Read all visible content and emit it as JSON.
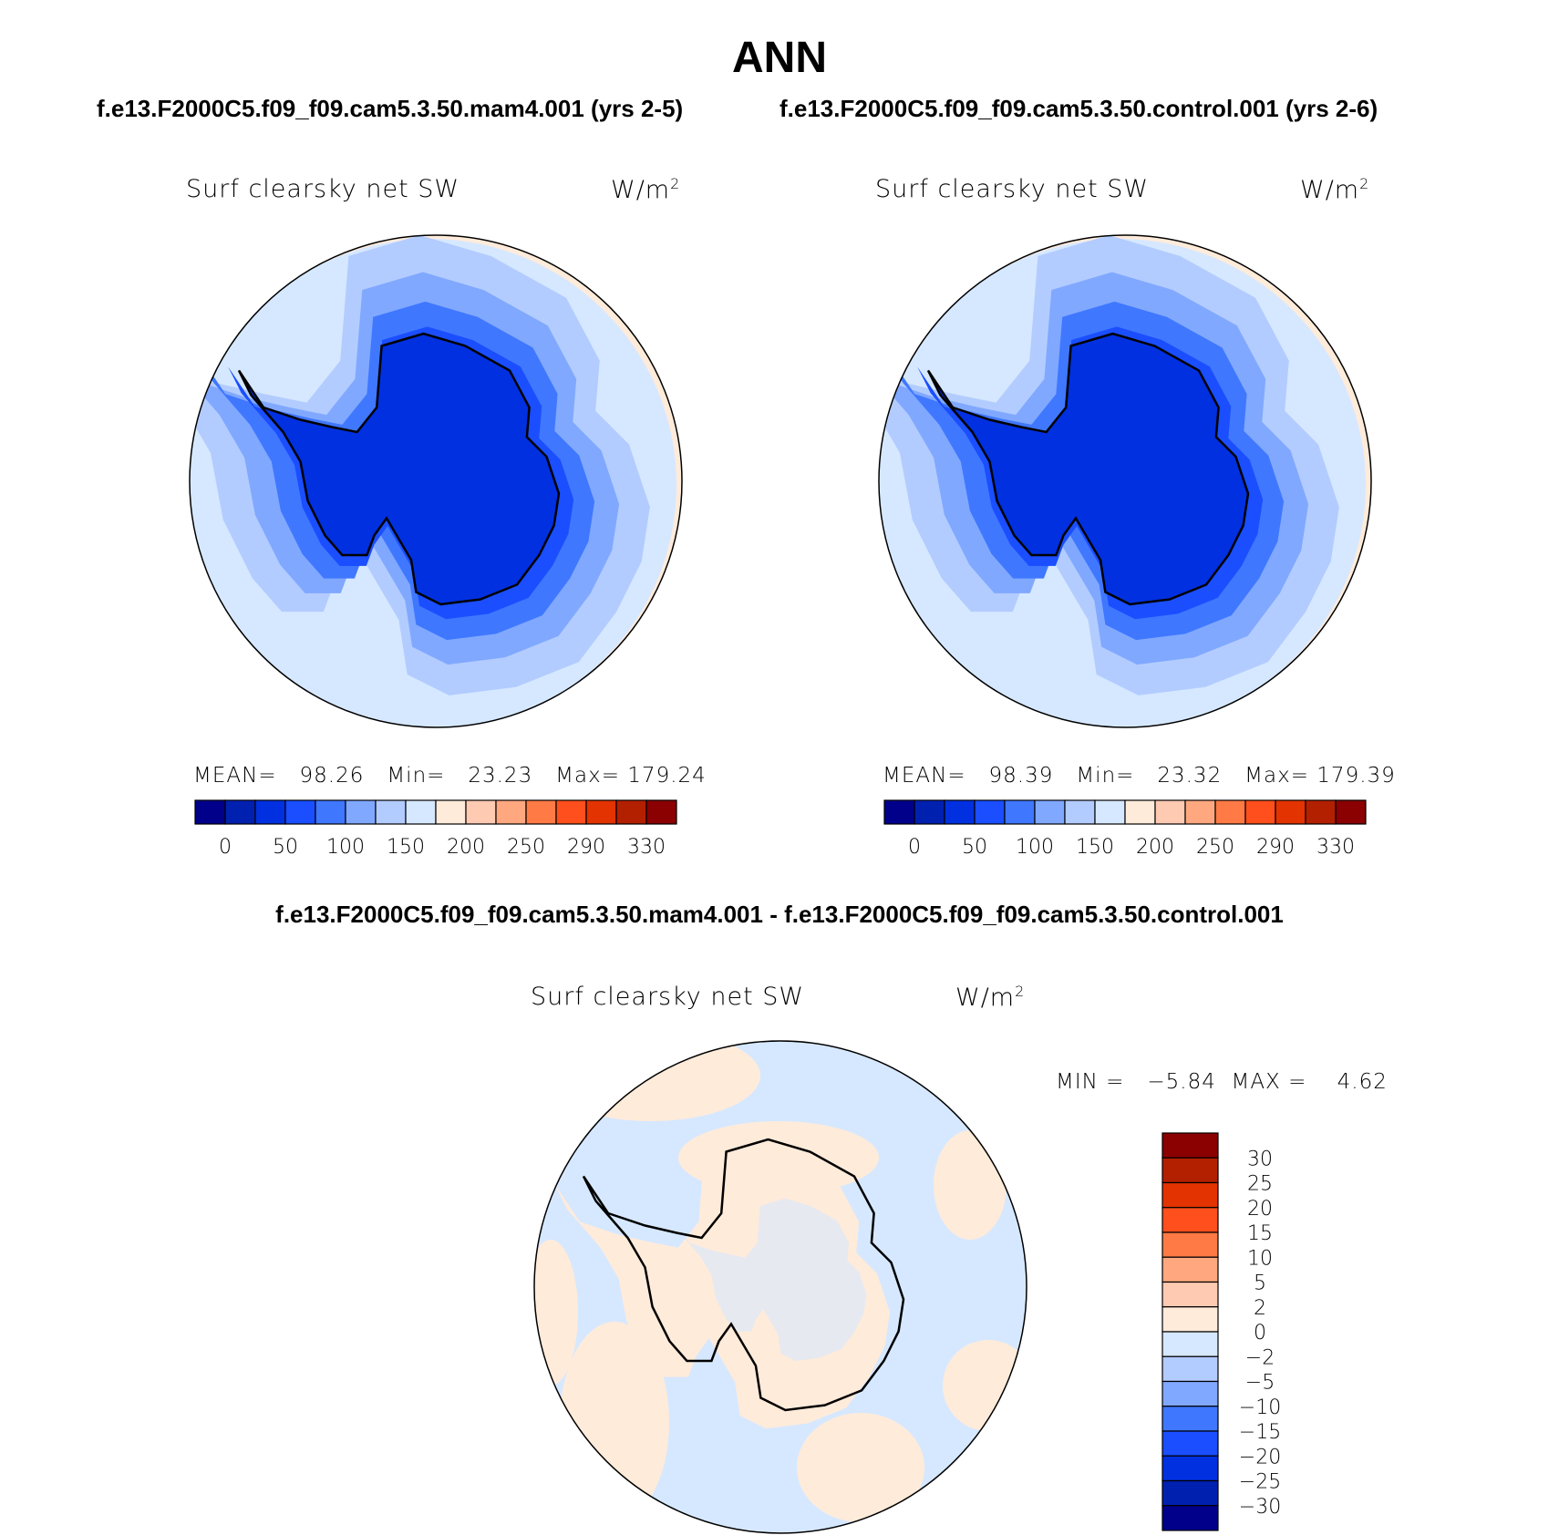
{
  "title": "ANN",
  "top_subtitle_left": "f.e13.F2000C5.f09_f09.cam5.3.50.mam4.001 (yrs 2-5)",
  "top_subtitle_right": "f.e13.F2000C5.f09_f09.cam5.3.50.control.001 (yrs 2-6)",
  "diff_subtitle": "f.e13.F2000C5.f09_f09.cam5.3.50.mam4.001 - f.e13.F2000C5.f09_f09.cam5.3.50.control.001",
  "chart_data": [
    {
      "type": "heatmap",
      "projection": "south-polar-stereographic",
      "variable": "Surf clearsky net SW",
      "units": "W/m²",
      "stats": {
        "mean_label": "MEAN=",
        "mean": "98.26",
        "min_label": "Min=",
        "min": "23.23",
        "max_label": "Max=",
        "max": "179.24"
      },
      "colorbar": {
        "orientation": "horizontal",
        "tick_labels": [
          "0",
          "50",
          "100",
          "150",
          "200",
          "250",
          "290",
          "330"
        ]
      }
    },
    {
      "type": "heatmap",
      "projection": "south-polar-stereographic",
      "variable": "Surf clearsky net SW",
      "units": "W/m²",
      "stats": {
        "mean_label": "MEAN=",
        "mean": "98.39",
        "min_label": "Min=",
        "min": "23.32",
        "max_label": "Max=",
        "max": "179.39"
      },
      "colorbar": {
        "orientation": "horizontal",
        "tick_labels": [
          "0",
          "50",
          "100",
          "150",
          "200",
          "250",
          "290",
          "330"
        ]
      }
    },
    {
      "type": "heatmap",
      "projection": "south-polar-stereographic",
      "variable": "Surf clearsky net SW",
      "units": "W/m²",
      "stats": {
        "min_label": "MIN =",
        "min": "−5.84",
        "max_label": "MAX =",
        "max": "4.62"
      },
      "colorbar": {
        "orientation": "vertical",
        "tick_labels": [
          "30",
          "25",
          "20",
          "15",
          "10",
          "5",
          "2",
          "0",
          "−2",
          "−5",
          "−10",
          "−15",
          "−20",
          "−25",
          "−30"
        ]
      }
    }
  ],
  "palette": [
    "#00008B",
    "#0020B0",
    "#0030E0",
    "#1A4EFF",
    "#3F77FF",
    "#80A8FF",
    "#B3CCFF",
    "#D6E8FF",
    "#FFEBDA",
    "#FFCAB2",
    "#FFA880",
    "#FF7A45",
    "#FF4F1C",
    "#E33300",
    "#B32000",
    "#8B0000"
  ]
}
